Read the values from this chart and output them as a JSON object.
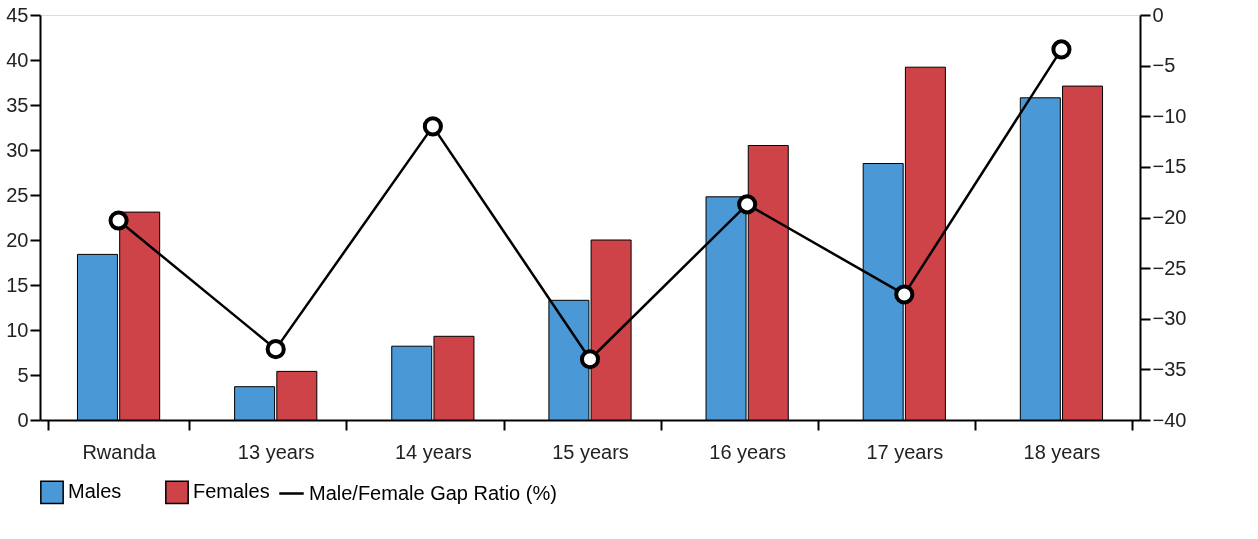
{
  "chart_data": {
    "type": "bar",
    "categories": [
      "Rwanda",
      "13 years",
      "14 years",
      "15 years",
      "16 years",
      "17 years",
      "18 years"
    ],
    "series": [
      {
        "name": "Males",
        "color": "#4a98d6",
        "values": [
          18.4,
          3.7,
          8.2,
          13.3,
          24.8,
          28.5,
          35.8
        ]
      },
      {
        "name": "Females",
        "color": "#cd4347",
        "values": [
          23.1,
          5.4,
          9.3,
          20.0,
          30.5,
          39.2,
          37.1
        ]
      },
      {
        "name": "Male/Female Gap Ratio (%)",
        "type": "line",
        "axis": "y2",
        "color": "#000000",
        "marker": "circle",
        "values": [
          -20.3,
          -33.0,
          -11.0,
          -34.0,
          -18.7,
          -27.6,
          -3.4
        ]
      }
    ],
    "ylim": [
      0,
      45
    ],
    "yticks": [
      0,
      5,
      10,
      15,
      20,
      25,
      30,
      35,
      40,
      45
    ],
    "y2lim": [
      -40,
      0
    ],
    "y2ticks": [
      0,
      -5,
      -10,
      -15,
      -20,
      -25,
      -30,
      -35,
      -40
    ],
    "grid": false,
    "legend": "bottom"
  }
}
